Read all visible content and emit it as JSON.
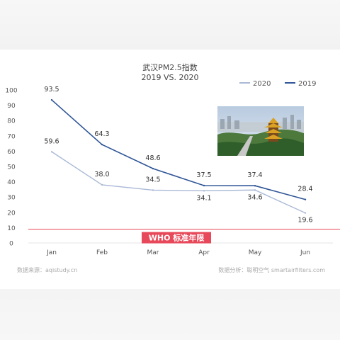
{
  "chart_data": {
    "type": "line",
    "title": "武汉PM2.5指数",
    "subtitle": "2019 VS. 2020",
    "categories": [
      "Jan",
      "Feb",
      "Mar",
      "Apr",
      "May",
      "Jun"
    ],
    "yticks": [
      0,
      10,
      20,
      30,
      40,
      50,
      60,
      70,
      80,
      90,
      100
    ],
    "ylim": [
      0,
      100
    ],
    "series": [
      {
        "name": "2020",
        "color": "#aab9d6",
        "values": [
          59.6,
          38.0,
          34.5,
          34.1,
          34.6,
          19.6
        ],
        "labels": [
          "59.6",
          "38.0",
          "34.5",
          "34.1",
          "34.6",
          "19.6"
        ]
      },
      {
        "name": "2019",
        "color": "#2f5597",
        "values": [
          93.5,
          64.3,
          48.6,
          37.5,
          37.4,
          28.4
        ],
        "labels": [
          "93.5",
          "64.3",
          "48.6",
          "37.5",
          "37.4",
          "28.4"
        ]
      }
    ],
    "reference_line": {
      "value": 9,
      "label": "WHO 标准年限",
      "color": "#e8495a"
    },
    "grid": false,
    "legend": "top-right"
  },
  "footer": {
    "source": "数据来源：aqistudy.cn",
    "analysis": "数据分析：聪明空气 smartairfilters.com"
  },
  "photo": {
    "description_icon": "wuhan-yellow-crane-tower-photo"
  }
}
